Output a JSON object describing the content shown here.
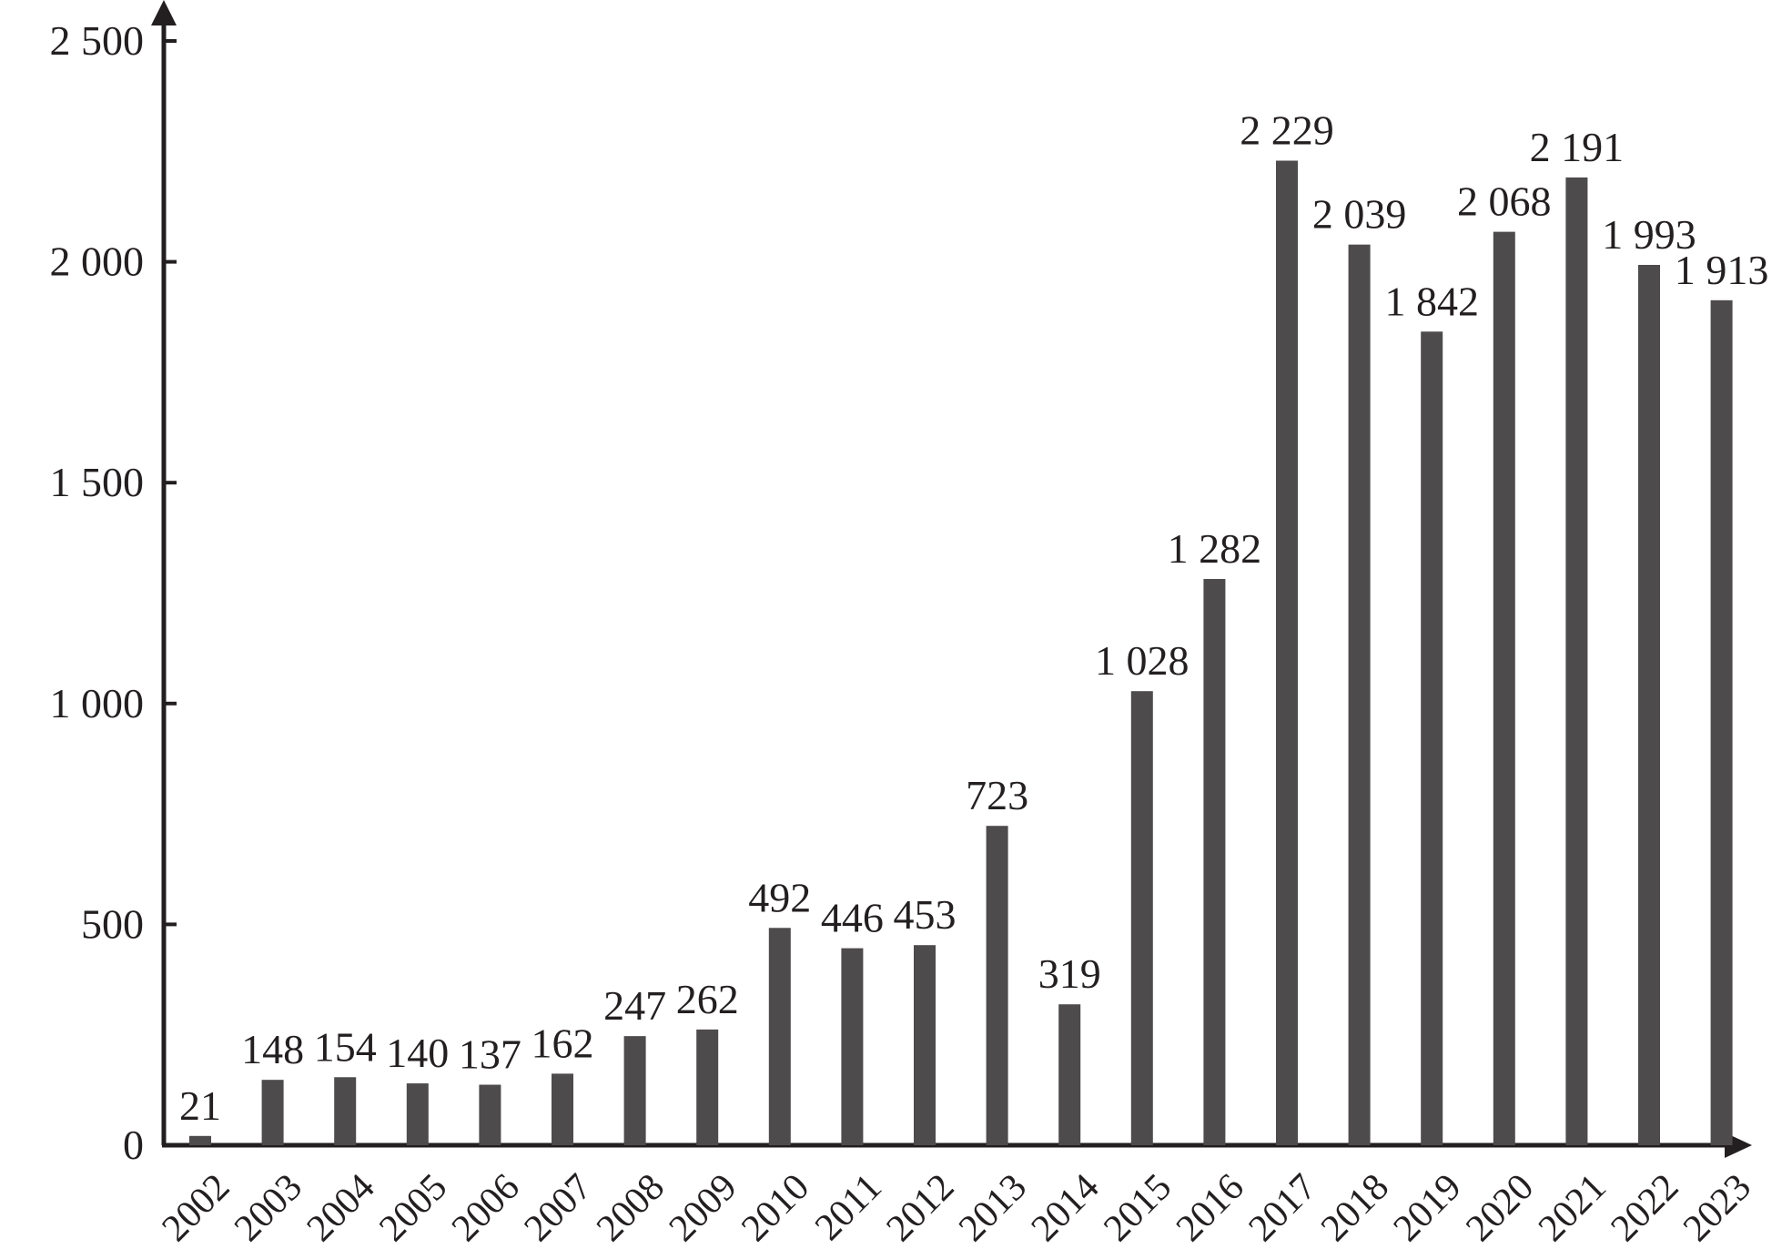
{
  "chart_data": {
    "type": "bar",
    "title": "",
    "xlabel": "",
    "ylabel": "",
    "categories": [
      "2002",
      "2003",
      "2004",
      "2005",
      "2006",
      "2007",
      "2008",
      "2009",
      "2010",
      "2011",
      "2012",
      "2013",
      "2014",
      "2015",
      "2016",
      "2017",
      "2018",
      "2019",
      "2020",
      "2021",
      "2022",
      "2023"
    ],
    "values": [
      21,
      148,
      154,
      140,
      137,
      162,
      247,
      262,
      492,
      446,
      453,
      723,
      319,
      1028,
      1282,
      2229,
      2039,
      1842,
      2068,
      2191,
      1993,
      1913
    ],
    "value_labels": [
      "21",
      "148",
      "154",
      "140",
      "137",
      "162",
      "247",
      "262",
      "492",
      "446",
      "453",
      "723",
      "319",
      "1 028",
      "1 282",
      "2 229",
      "2 039",
      "1 842",
      "2 068",
      "2 191",
      "1 993",
      "1 913"
    ],
    "ylim": [
      0,
      2500
    ],
    "yticks": [
      0,
      500,
      1000,
      1500,
      2000,
      2500
    ],
    "ytick_labels": [
      "0",
      "500",
      "1 000",
      "1 500",
      "2 000",
      "2 500"
    ],
    "grid": false,
    "legend": "none",
    "bar_color": "#4d4b4c",
    "axis_color": "#231f20"
  }
}
